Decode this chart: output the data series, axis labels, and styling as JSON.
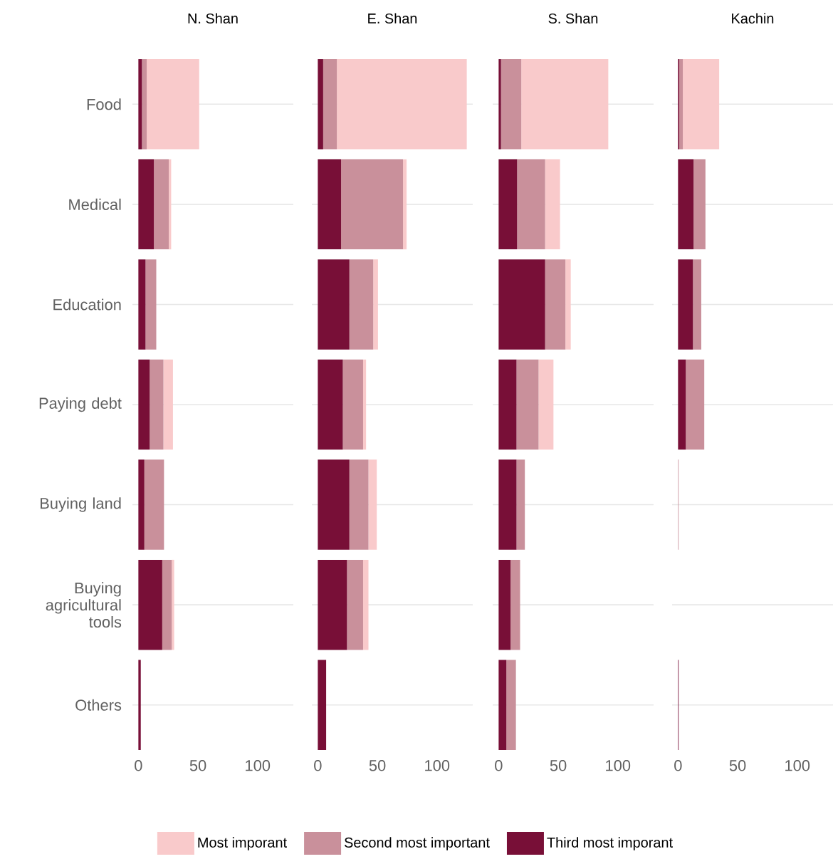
{
  "chart_data": [
    {
      "type": "bar",
      "orientation": "horizontal",
      "stacked": true,
      "title": "N. Shan",
      "categories": [
        "Food",
        "Medical",
        "Education",
        "Paying debt",
        "Buying land",
        "Buying agricultural tools",
        "Others"
      ],
      "xlim": [
        -5,
        130
      ],
      "xticks": [
        0,
        50,
        100
      ],
      "grid": "y",
      "series": [
        {
          "color": "#780f37",
          "values": [
            3,
            13,
            6,
            9.5,
            5,
            20,
            2
          ]
        },
        {
          "color": "#c9909b",
          "values": [
            4,
            12.5,
            9,
            11.5,
            16.5,
            8,
            0
          ]
        },
        {
          "color": "#f9cacb",
          "values": [
            44,
            2,
            0,
            8,
            0,
            2,
            0
          ]
        }
      ]
    },
    {
      "type": "bar",
      "orientation": "horizontal",
      "stacked": true,
      "title": "E. Shan",
      "categories": [
        null,
        null,
        null,
        null,
        null,
        null,
        null
      ],
      "xlim": [
        -5,
        130
      ],
      "xticks": [
        0,
        50,
        100
      ],
      "grid": "y",
      "tick_labels": "x",
      "series": [
        {
          "color": "#780f37",
          "values": [
            4.5,
            19.5,
            26.5,
            21,
            26.5,
            24.5,
            7
          ]
        },
        {
          "color": "#c9909b",
          "values": [
            11.5,
            52,
            20,
            17,
            16,
            13.5,
            0
          ]
        },
        {
          "color": "#f9cacb",
          "values": [
            109,
            3,
            4,
            2.5,
            7,
            4.5,
            0
          ]
        }
      ]
    },
    {
      "type": "bar",
      "orientation": "horizontal",
      "stacked": true,
      "title": "S. Shan",
      "categories": [
        null,
        null,
        null,
        null,
        null,
        null,
        null
      ],
      "xlim": [
        -5,
        130
      ],
      "xticks": [
        0,
        50,
        100
      ],
      "grid": "y",
      "tick_labels": "x",
      "series": [
        {
          "color": "#780f37",
          "values": [
            2,
            15.5,
            39,
            15,
            15,
            10,
            6.5
          ]
        },
        {
          "color": "#c9909b",
          "values": [
            17,
            23.5,
            17,
            18.5,
            7,
            8,
            8
          ]
        },
        {
          "color": "#f9cacb",
          "values": [
            73,
            12.5,
            4.5,
            12.5,
            0,
            0,
            0
          ]
        }
      ]
    },
    {
      "type": "bar",
      "orientation": "horizontal",
      "stacked": true,
      "title": "Kachin",
      "categories": [
        null,
        null,
        null,
        null,
        null,
        null,
        null
      ],
      "xlim": [
        -5,
        130
      ],
      "xticks": [
        0,
        50,
        100
      ],
      "grid": "y",
      "tick_labels": "x",
      "legend": "bottom",
      "series": [
        {
          "name": "Third most imporant",
          "color": "#780f37",
          "values": [
            1,
            13,
            12.5,
            6.5,
            0,
            0,
            0.5
          ]
        },
        {
          "name": "Second most important",
          "color": "#c9909b",
          "values": [
            3,
            10,
            7,
            15.5,
            0.5,
            0,
            0
          ]
        },
        {
          "name": "Most imporant",
          "color": "#f9cacb",
          "values": [
            30.5,
            0,
            null,
            0,
            0,
            0,
            0
          ]
        }
      ]
    }
  ]
}
